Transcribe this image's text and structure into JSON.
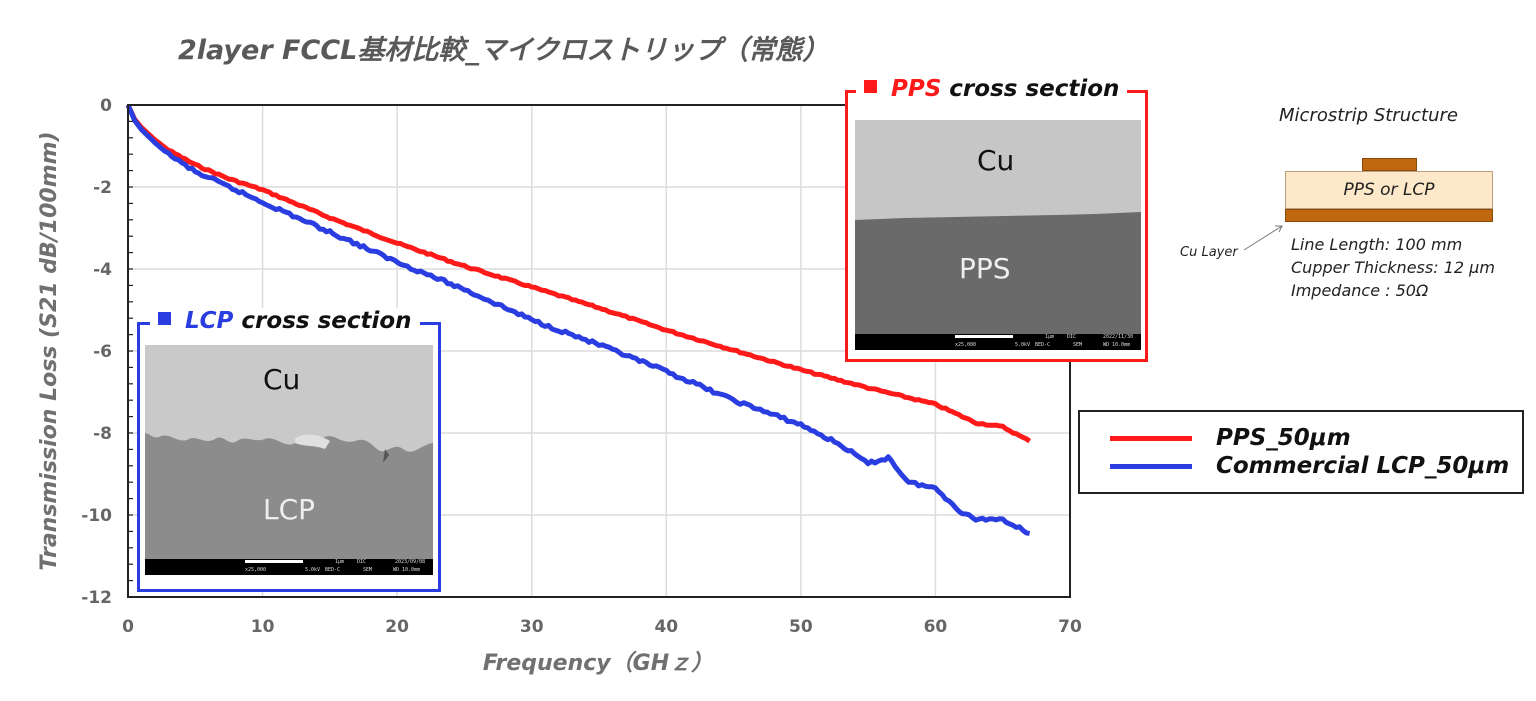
{
  "title": "2layer FCCL基材比較_マイクロストリップ（常態）",
  "chart_data": {
    "type": "line",
    "title": "2layer FCCL基材比較_マイクロストリップ（常態）",
    "xlabel": "Frequency（GHｚ）",
    "ylabel": "Transmission Loss (S21 dB/100mm)",
    "xlim": [
      0,
      70
    ],
    "ylim": [
      -12,
      0
    ],
    "xticks": [
      "0",
      "10",
      "20",
      "30",
      "40",
      "50",
      "60",
      "70"
    ],
    "yticks": [
      "0",
      "-2",
      "-4",
      "-6",
      "-8",
      "-10",
      "-12"
    ],
    "grid": true,
    "legend_position": "right",
    "series": [
      {
        "name": "PPS_50μm",
        "color": "#ff1a1a",
        "x": [
          0,
          0.5,
          1,
          2,
          3,
          5,
          7.5,
          10,
          15,
          20,
          25,
          30,
          35,
          40,
          45,
          50,
          55,
          60,
          63,
          65,
          67
        ],
        "y": [
          0,
          -0.35,
          -0.55,
          -0.85,
          -1.1,
          -1.46,
          -1.8,
          -2.07,
          -2.75,
          -3.37,
          -3.93,
          -4.44,
          -4.95,
          -5.49,
          -5.98,
          -6.46,
          -6.9,
          -7.3,
          -7.75,
          -7.85,
          -8.2
        ]
      },
      {
        "name": "Commercial LCP_50μm",
        "color": "#2a3de0",
        "x": [
          0,
          0.5,
          1,
          2,
          3,
          5,
          7.5,
          10,
          15,
          20,
          25,
          30,
          35,
          40,
          45,
          50,
          53,
          55,
          56.5,
          58,
          60,
          62,
          63,
          65,
          67
        ],
        "y": [
          0,
          -0.38,
          -0.6,
          -0.92,
          -1.2,
          -1.63,
          -2.0,
          -2.37,
          -3.1,
          -3.83,
          -4.5,
          -5.24,
          -5.85,
          -6.5,
          -7.2,
          -7.8,
          -8.3,
          -8.75,
          -8.6,
          -9.2,
          -9.35,
          -9.95,
          -10.1,
          -10.1,
          -10.45
        ]
      }
    ]
  },
  "legend": [
    {
      "label": "PPS_50μm",
      "color": "#ff1a1a"
    },
    {
      "label": "Commercial LCP_50μm",
      "color": "#2a3de0"
    }
  ],
  "lcp_inset": {
    "title_colored": "LCP",
    "title_rest": " cross section",
    "color": "#2a3de0",
    "top_label": "Cu",
    "bottom_label": "LCP",
    "scale_text": "1μm",
    "mag": "x25,000",
    "kv": "5.0kV",
    "det": "BED-C",
    "org": "DIC",
    "mode": "SEM",
    "wd": "WD 10.0mm",
    "date": "2023/09/08"
  },
  "pps_inset": {
    "title_colored": "PPS",
    "title_rest": " cross section",
    "color": "#ff1a1a",
    "top_label": "Cu",
    "bottom_label": "PPS",
    "scale_text": "1μm",
    "mag": "x25,000",
    "kv": "5.0kV",
    "det": "BED-C",
    "org": "DIC",
    "mode": "SEM",
    "wd": "WD 10.0mm",
    "date": "2022/11/30"
  },
  "microstrip": {
    "title": "Microstrip Structure",
    "substrate_label": "PPS or LCP",
    "cu_layer_label": "Cu Layer",
    "copper_color": "#c0680f",
    "substrate_color": "#fde9c9",
    "specs": [
      "Line Length: 100 mm",
      "Cupper Thickness: 12 μm",
      "Impedance : 50Ω"
    ]
  }
}
